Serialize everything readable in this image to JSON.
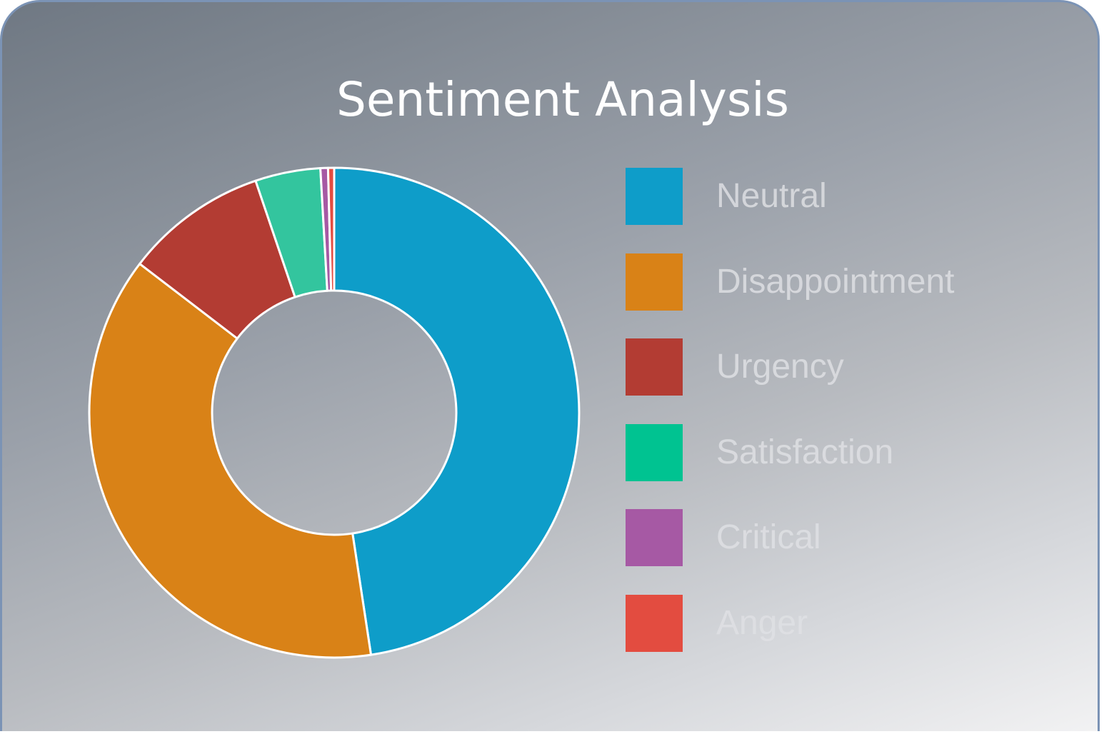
{
  "chart_data": {
    "type": "pie",
    "donut": true,
    "title": "Sentiment Analysis",
    "legend_position": "right",
    "categories": [
      "Neutral",
      "Disappointment",
      "Urgency",
      "Satisfaction",
      "Critical",
      "Anger"
    ],
    "values": [
      47.6,
      37.8,
      9.4,
      4.3,
      0.5,
      0.4
    ],
    "colors": [
      "#0e9dc9",
      "#d98217",
      "#b33c33",
      "#33c59e",
      "#a659a4",
      "#e34c40"
    ],
    "legend_colors": [
      "#0e9dc9",
      "#d98217",
      "#b33c33",
      "#00c391",
      "#a659a4",
      "#e34c40"
    ]
  }
}
